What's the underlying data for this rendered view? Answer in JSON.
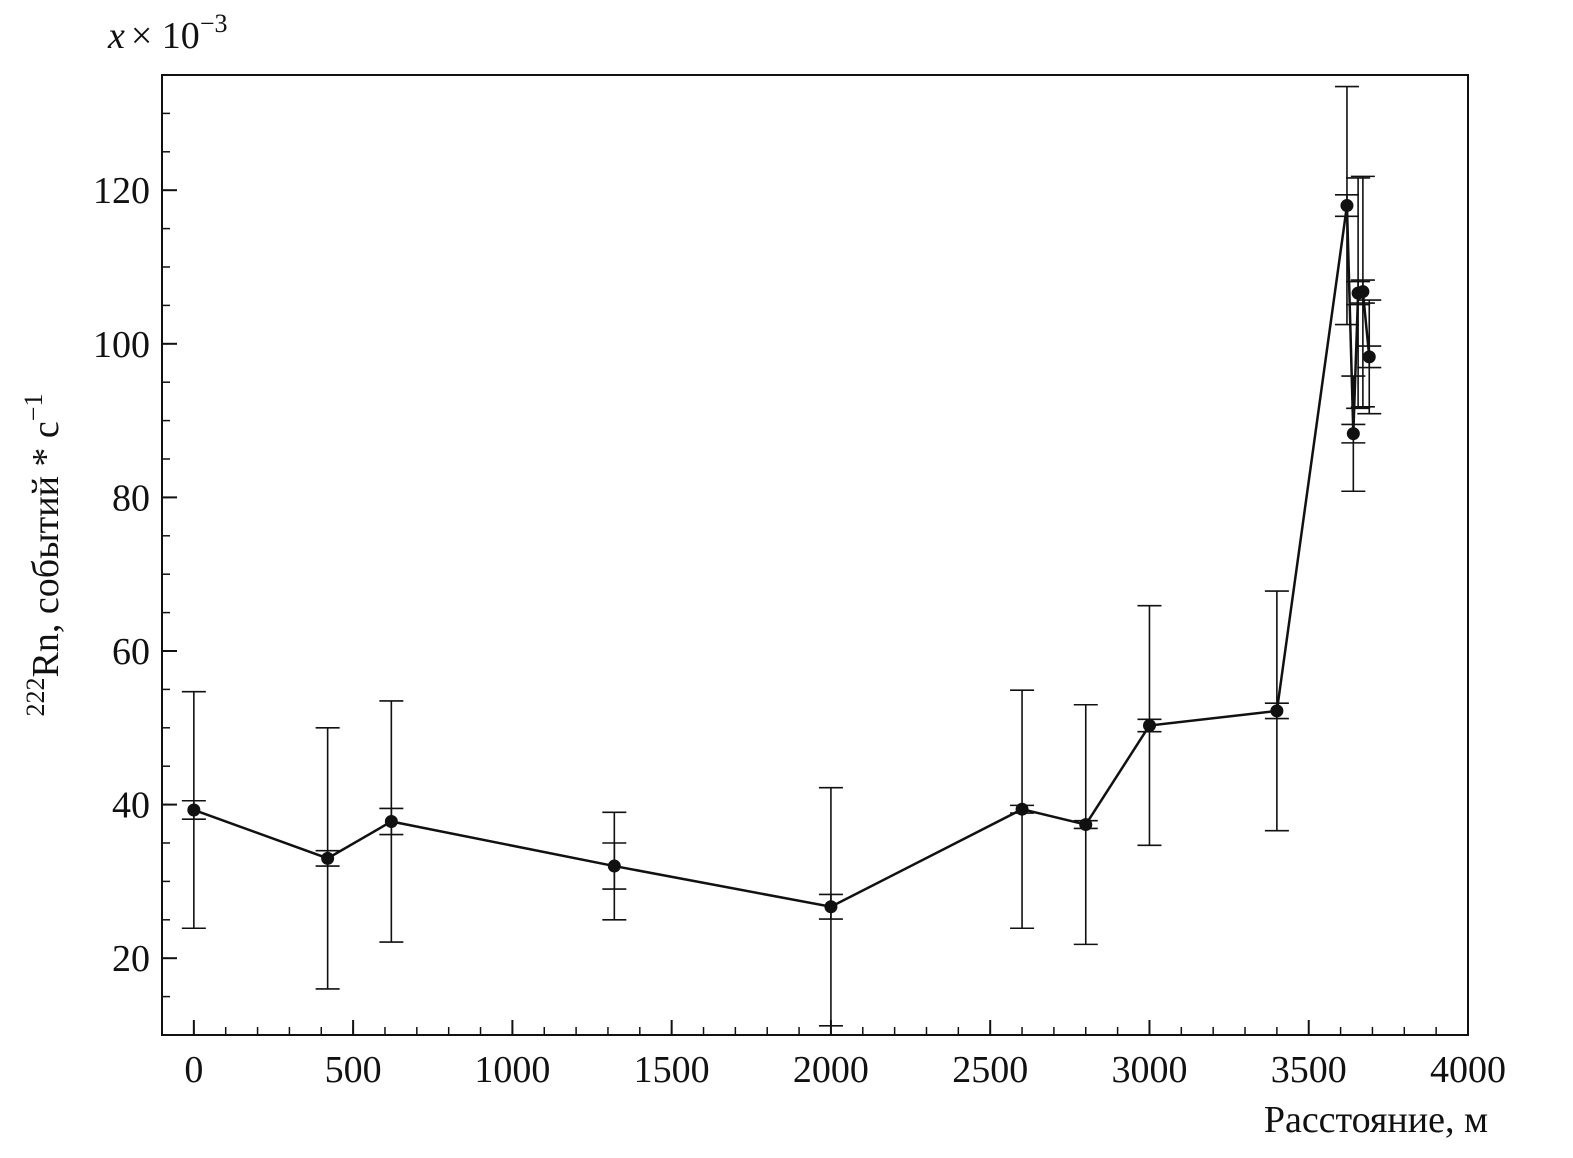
{
  "chart_data": {
    "type": "line",
    "xlabel": "Расстояние, м",
    "ylabel_sup": "222",
    "ylabel": "Rn, событий * с",
    "ylabel_exp": "−1",
    "multiplier_var": "x",
    "multiplier": "× 10",
    "multiplier_exp": "−3",
    "x": [
      0,
      420,
      620,
      1320,
      2000,
      2600,
      2800,
      3000,
      3400,
      3620,
      3640,
      3655,
      3670,
      3690
    ],
    "series": [
      {
        "color": "#111111",
        "values": [
          39.3,
          33,
          37.8,
          32,
          26.7,
          39.4,
          37.4,
          50.3,
          52.2,
          118,
          88.3,
          106.6,
          106.8,
          98.3
        ],
        "errors": [
          15.4,
          17,
          15.7,
          7,
          15.5,
          15.5,
          15.6,
          15.6,
          15.6,
          15.5,
          7.5,
          15,
          15,
          7.4
        ],
        "errors_inner": [
          1.2,
          1,
          1.7,
          3,
          1.6,
          0.5,
          0.5,
          0.8,
          1,
          1.4,
          1.2,
          1.5,
          1.5,
          1.4
        ]
      }
    ],
    "xlim": [
      -100,
      4000
    ],
    "xticks": [
      0,
      500,
      1000,
      1500,
      2000,
      2500,
      3000,
      3500,
      4000
    ],
    "xminor_step": 100,
    "ylim": [
      10,
      135
    ],
    "yticks": [
      20,
      40,
      60,
      80,
      100,
      120
    ],
    "yminor_step": 5
  }
}
